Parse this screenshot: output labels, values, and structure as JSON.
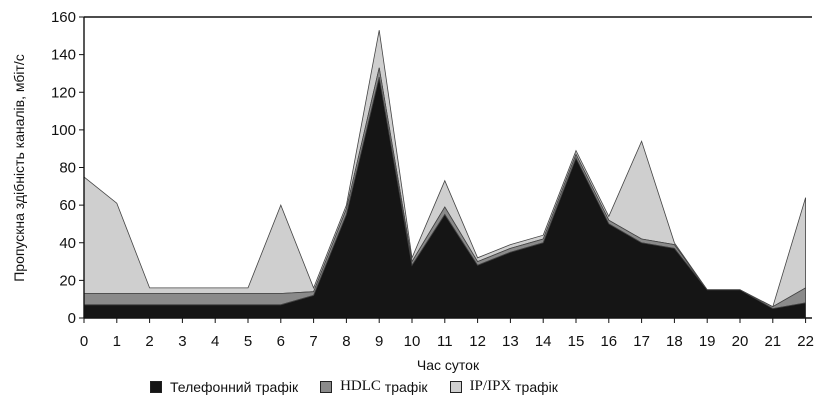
{
  "chart_data": {
    "type": "area",
    "stacked": true,
    "xlabel": "Час суток",
    "ylabel": "Пропускна здібність каналів, мбіт/с",
    "ylim": [
      0,
      160
    ],
    "yticks": [
      0,
      20,
      40,
      60,
      80,
      100,
      120,
      140,
      160
    ],
    "x": [
      0,
      1,
      2,
      3,
      4,
      5,
      6,
      7,
      8,
      9,
      10,
      11,
      12,
      13,
      14,
      15,
      16,
      17,
      18,
      19,
      20,
      21,
      22
    ],
    "x_tick_labels": [
      "0",
      "1",
      "2",
      "3",
      "4",
      "5",
      "6",
      "7",
      "8",
      "9",
      "10",
      "11",
      "12",
      "13",
      "14",
      "15",
      "16",
      "17",
      "18",
      "19",
      "20",
      "21",
      "22"
    ],
    "grid": false,
    "legend_position": "bottom",
    "series": [
      {
        "name": "Телефонний трафік",
        "color": "#151515",
        "values": [
          7,
          7,
          7,
          7,
          7,
          7,
          7,
          12,
          55,
          128,
          28,
          55,
          28,
          35,
          40,
          85,
          50,
          40,
          37,
          15,
          15,
          5,
          8
        ]
      },
      {
        "name": "HDLC трафік",
        "color": "#8a8a8a",
        "values": [
          6,
          6,
          6,
          6,
          6,
          6,
          6,
          2,
          3,
          5,
          2,
          4,
          2,
          2,
          2,
          2,
          2,
          2,
          2,
          0,
          0,
          1,
          8
        ]
      },
      {
        "name": "IP/IPX трафік",
        "color": "#cfcfcf",
        "values": [
          62,
          48,
          3,
          3,
          3,
          3,
          47,
          2,
          2,
          20,
          2,
          14,
          2,
          2,
          2,
          2,
          2,
          52,
          1,
          0,
          0,
          0,
          48
        ]
      }
    ]
  },
  "legend": {
    "telephone": "Телефонний трафік",
    "hdlc_prefix": "HDLC",
    "hdlc_suffix": " трафік",
    "ipx_prefix": "IP/IPX",
    "ipx_suffix": " трафік"
  }
}
